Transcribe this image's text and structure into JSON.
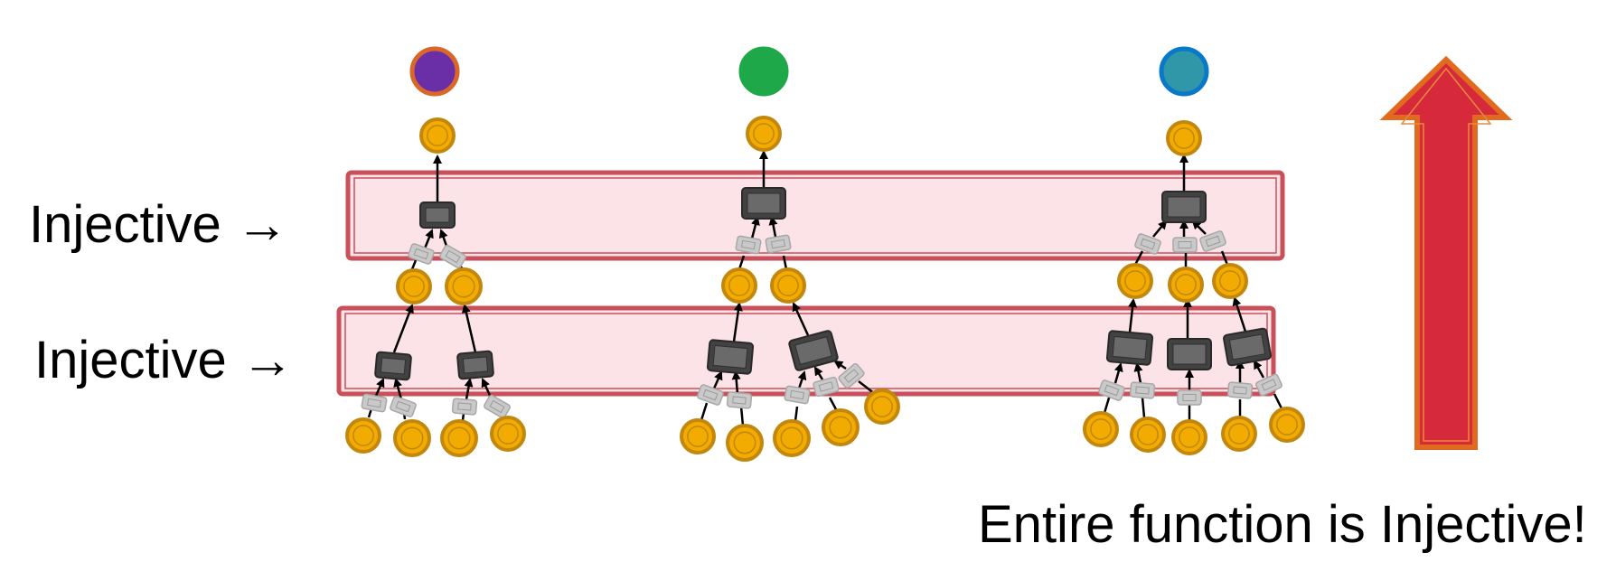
{
  "labels": {
    "layer_top": "Injective →",
    "layer_bottom": "Injective →",
    "conclusion": "Entire function is Injective!"
  },
  "colors": {
    "band_fill": "#fbe3e7",
    "band_stroke": "#c9505a",
    "node_fill": "#f2ab00",
    "node_stroke": "#c2870c",
    "agg_fill": "#424242",
    "agg_inner": "#6a6a6a",
    "msg_fill": "#c9c9c9",
    "arrow_fill": "#d62a3c",
    "arrow_stroke": "#e06a1e",
    "output_purple": "#6a2ea6",
    "output_purple_ring": "#d9672a",
    "output_green": "#1fa84a",
    "output_blue": "#2f97a8",
    "output_blue_ring": "#0a78c8"
  },
  "outputs": [
    {
      "name": "purple-output-node",
      "color": "output_purple",
      "ring": "output_purple_ring"
    },
    {
      "name": "green-output-node",
      "color": "output_green",
      "ring": "output_green"
    },
    {
      "name": "blue-output-node",
      "color": "output_blue",
      "ring": "output_blue_ring"
    }
  ]
}
